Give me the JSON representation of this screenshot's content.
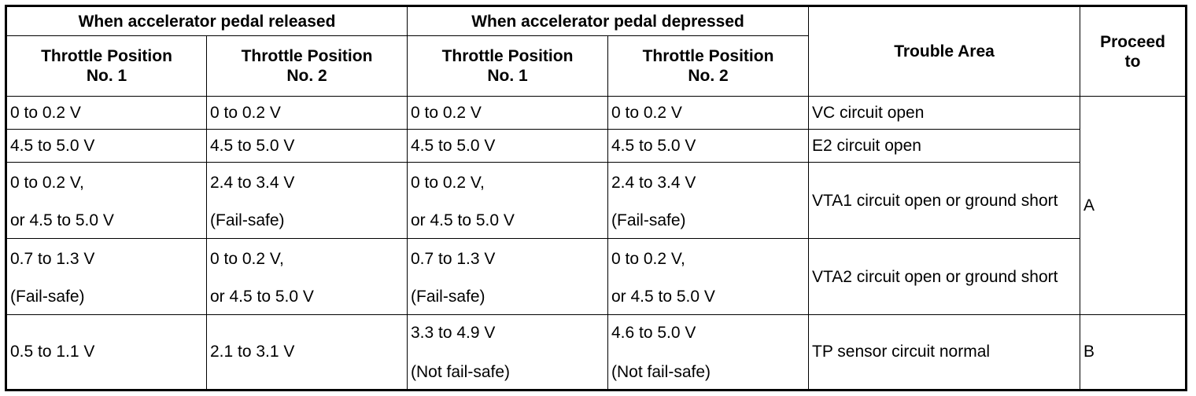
{
  "headers": {
    "released": "When accelerator pedal released",
    "depressed": "When accelerator pedal depressed",
    "tp1": "Throttle Position\nNo. 1",
    "tp1_line1": "Throttle Position",
    "tp1_line2": "No. 1",
    "tp2_line1": "Throttle Position",
    "tp2_line2": "No. 2",
    "trouble_area": "Trouble Area",
    "proceed_line1": "Proceed",
    "proceed_line2": "to"
  },
  "rows": [
    {
      "rel_tp1": [
        "0 to 0.2 V"
      ],
      "rel_tp2": [
        "0 to 0.2 V"
      ],
      "dep_tp1": [
        "0 to 0.2 V"
      ],
      "dep_tp2": [
        "0 to 0.2 V"
      ],
      "area": "VC circuit open"
    },
    {
      "rel_tp1": [
        "4.5 to 5.0 V"
      ],
      "rel_tp2": [
        "4.5 to 5.0 V"
      ],
      "dep_tp1": [
        "4.5 to 5.0 V"
      ],
      "dep_tp2": [
        "4.5 to 5.0 V"
      ],
      "area": "E2 circuit open"
    },
    {
      "rel_tp1": [
        "0 to 0.2 V,",
        "or 4.5 to 5.0 V"
      ],
      "rel_tp2": [
        "2.4 to 3.4 V",
        "(Fail-safe)"
      ],
      "dep_tp1": [
        "0 to 0.2 V,",
        "or 4.5 to 5.0 V"
      ],
      "dep_tp2": [
        "2.4 to 3.4 V",
        "(Fail-safe)"
      ],
      "area": "VTA1 circuit open or ground short"
    },
    {
      "rel_tp1": [
        "0.7 to 1.3 V",
        "(Fail-safe)"
      ],
      "rel_tp2": [
        "0 to 0.2 V,",
        "or 4.5 to 5.0 V"
      ],
      "dep_tp1": [
        "0.7 to 1.3 V",
        "(Fail-safe)"
      ],
      "dep_tp2": [
        "0 to 0.2 V,",
        "or 4.5 to 5.0 V"
      ],
      "area": "VTA2 circuit open or ground short"
    },
    {
      "rel_tp1": [
        "0.5 to 1.1 V"
      ],
      "rel_tp2": [
        "2.1 to 3.1 V"
      ],
      "dep_tp1": [
        "3.3 to 4.9 V",
        "(Not fail-safe)"
      ],
      "dep_tp2": [
        "4.6 to 5.0 V",
        "(Not fail-safe)"
      ],
      "area": "TP sensor circuit normal"
    }
  ],
  "proceed": [
    "A",
    "B"
  ]
}
